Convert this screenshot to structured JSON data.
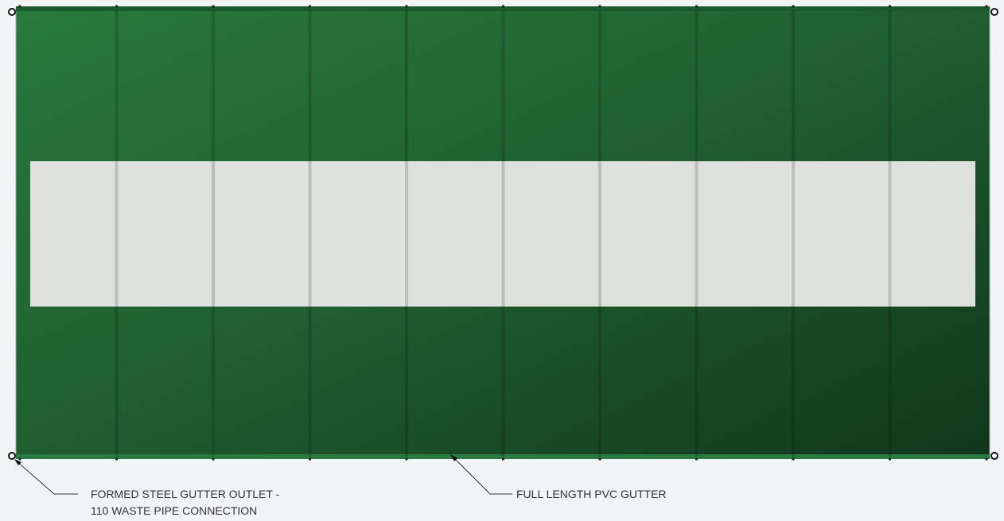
{
  "labels": {
    "outlet": [
      "FORMED STEEL GUTTER OUTLET -",
      "110 WASTE PIPE CONNECTION"
    ],
    "gutter": "FULL LENGTH PVC GUTTER"
  }
}
